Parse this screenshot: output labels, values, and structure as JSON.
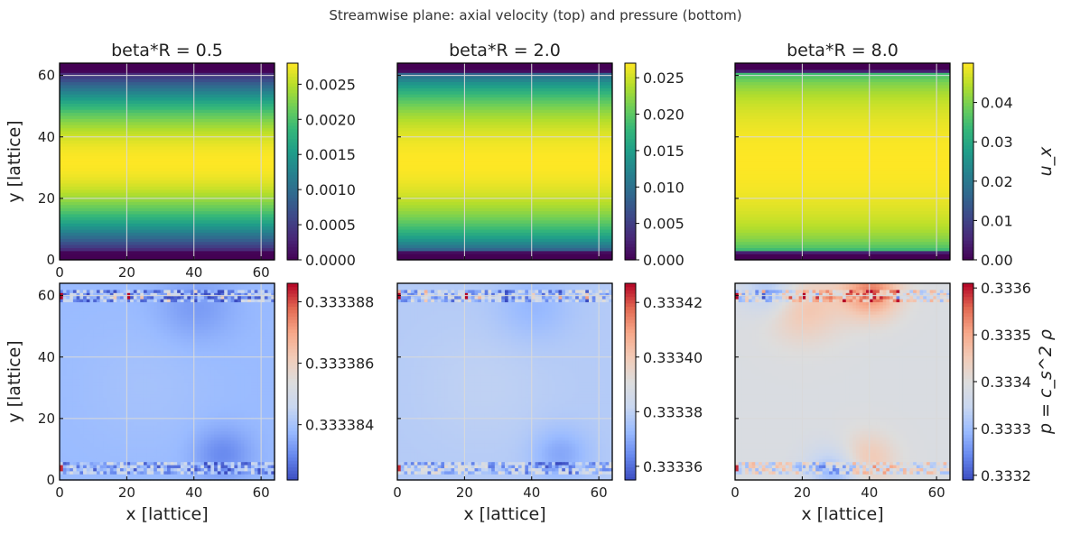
{
  "figure": {
    "suptitle": "Streamwise plane: axial velocity (top) and pressure (bottom)"
  },
  "colors": {
    "grid": "#d9d9d9",
    "axes": "#000000",
    "viridis": [
      "#440154",
      "#482878",
      "#3e4989",
      "#31688e",
      "#26828e",
      "#1f9e89",
      "#35b779",
      "#6ece58",
      "#b5de2b",
      "#fde725"
    ],
    "coolwarm": [
      "#3b4cc0",
      "#6788ee",
      "#9abbff",
      "#c9d7f0",
      "#dddddd",
      "#f2cbb7",
      "#f7a889",
      "#e26952",
      "#b40426"
    ]
  },
  "chart_data": [
    {
      "type": "heatmap",
      "row": "velocity",
      "title": "beta*R = 0.5",
      "xlabel": "",
      "ylabel": "y [lattice]",
      "xlim": [
        0,
        64
      ],
      "ylim": [
        0,
        64
      ],
      "xticks": [
        "0",
        "20",
        "40",
        "60"
      ],
      "yticks": [
        "0",
        "20",
        "40",
        "60"
      ],
      "colormap": "viridis",
      "clim": [
        0.0,
        0.0028
      ],
      "colorbar_ticks": [
        "0.0000",
        "0.0005",
        "0.0010",
        "0.0015",
        "0.0020",
        "0.0025"
      ],
      "colorbar_label": "",
      "profile": "parabolic",
      "vmax": 0.0028,
      "wall_rows": [
        0,
        1,
        2,
        61,
        62,
        63
      ]
    },
    {
      "type": "heatmap",
      "row": "velocity",
      "title": "beta*R = 2.0",
      "xlabel": "",
      "ylabel": "",
      "xlim": [
        0,
        64
      ],
      "ylim": [
        0,
        64
      ],
      "xticks": [
        "",
        "",
        "",
        ""
      ],
      "yticks": [
        "",
        "",
        "",
        ""
      ],
      "colormap": "viridis",
      "clim": [
        0.0,
        0.027
      ],
      "colorbar_ticks": [
        "0.000",
        "0.005",
        "0.010",
        "0.015",
        "0.020",
        "0.025"
      ],
      "colorbar_label": "",
      "profile": "blunted",
      "vmax": 0.027,
      "wall_rows": [
        0,
        1,
        2,
        61,
        62,
        63
      ]
    },
    {
      "type": "heatmap",
      "row": "velocity",
      "title": "beta*R = 8.0",
      "xlabel": "",
      "ylabel": "",
      "xlim": [
        0,
        64
      ],
      "ylim": [
        0,
        64
      ],
      "xticks": [
        "",
        "",
        "",
        ""
      ],
      "yticks": [
        "",
        "",
        "",
        ""
      ],
      "colormap": "viridis",
      "clim": [
        0.0,
        0.05
      ],
      "colorbar_ticks": [
        "0.00",
        "0.01",
        "0.02",
        "0.03",
        "0.04"
      ],
      "colorbar_label": "u_x",
      "profile": "plug",
      "vmax": 0.05,
      "wall_rows": [
        0,
        1,
        2,
        61,
        62,
        63
      ]
    },
    {
      "type": "heatmap",
      "row": "pressure",
      "title": "",
      "xlabel": "x [lattice]",
      "ylabel": "y [lattice]",
      "xlim": [
        0,
        64
      ],
      "ylim": [
        0,
        64
      ],
      "xticks": [
        "0",
        "20",
        "40",
        "60"
      ],
      "yticks": [
        "0",
        "20",
        "40",
        "60"
      ],
      "colormap": "coolwarm",
      "clim": [
        0.3333822,
        0.3333886
      ],
      "colorbar_ticks": [
        "0.333384",
        "0.333386",
        "0.333388"
      ],
      "colorbar_label": "",
      "background_level": 0.3333838
    },
    {
      "type": "heatmap",
      "row": "pressure",
      "title": "",
      "xlabel": "x [lattice]",
      "ylabel": "",
      "xlim": [
        0,
        64
      ],
      "ylim": [
        0,
        64
      ],
      "xticks": [
        "0",
        "20",
        "40",
        "60"
      ],
      "yticks": [
        "",
        "",
        "",
        ""
      ],
      "colormap": "coolwarm",
      "clim": [
        0.333355,
        0.333427
      ],
      "colorbar_ticks": [
        "0.33336",
        "0.33338",
        "0.33340",
        "0.33342"
      ],
      "colorbar_label": "",
      "background_level": 0.333378
    },
    {
      "type": "heatmap",
      "row": "pressure",
      "title": "",
      "xlabel": "x [lattice]",
      "ylabel": "",
      "xlim": [
        0,
        64
      ],
      "ylim": [
        0,
        64
      ],
      "xticks": [
        "0",
        "20",
        "40",
        "60"
      ],
      "yticks": [
        "",
        "",
        "",
        ""
      ],
      "colormap": "coolwarm",
      "clim": [
        0.33319,
        0.33361
      ],
      "colorbar_ticks": [
        "0.3332",
        "0.3333",
        "0.3334",
        "0.3335",
        "0.3336"
      ],
      "colorbar_label": "p = c_s^2 ρ",
      "background_level": 0.33339
    }
  ]
}
